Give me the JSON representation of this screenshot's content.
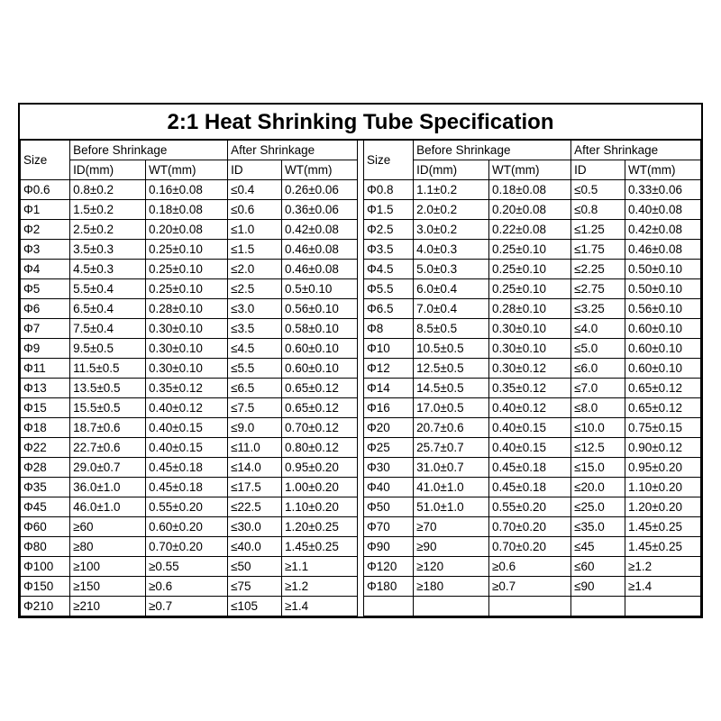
{
  "title": "2:1 Heat Shrinking Tube Specification",
  "headers": {
    "size": "Size",
    "before": "Before Shrinkage",
    "after": "After Shrinkage",
    "id_mm": "ID(mm)",
    "wt_mm": "WT(mm)",
    "id": "ID"
  },
  "left": [
    [
      "Φ0.6",
      "0.8±0.2",
      "0.16±0.08",
      "≤0.4",
      "0.26±0.06"
    ],
    [
      "Φ1",
      "1.5±0.2",
      "0.18±0.08",
      "≤0.6",
      "0.36±0.06"
    ],
    [
      "Φ2",
      "2.5±0.2",
      "0.20±0.08",
      "≤1.0",
      "0.42±0.08"
    ],
    [
      "Φ3",
      "3.5±0.3",
      "0.25±0.10",
      "≤1.5",
      "0.46±0.08"
    ],
    [
      "Φ4",
      "4.5±0.3",
      "0.25±0.10",
      "≤2.0",
      "0.46±0.08"
    ],
    [
      "Φ5",
      "5.5±0.4",
      "0.25±0.10",
      "≤2.5",
      "0.5±0.10"
    ],
    [
      "Φ6",
      "6.5±0.4",
      "0.28±0.10",
      "≤3.0",
      "0.56±0.10"
    ],
    [
      "Φ7",
      "7.5±0.4",
      "0.30±0.10",
      "≤3.5",
      "0.58±0.10"
    ],
    [
      "Φ9",
      "9.5±0.5",
      "0.30±0.10",
      "≤4.5",
      "0.60±0.10"
    ],
    [
      "Φ11",
      "11.5±0.5",
      "0.30±0.10",
      "≤5.5",
      "0.60±0.10"
    ],
    [
      "Φ13",
      "13.5±0.5",
      "0.35±0.12",
      "≤6.5",
      "0.65±0.12"
    ],
    [
      "Φ15",
      "15.5±0.5",
      "0.40±0.12",
      "≤7.5",
      "0.65±0.12"
    ],
    [
      "Φ18",
      "18.7±0.6",
      "0.40±0.15",
      "≤9.0",
      "0.70±0.12"
    ],
    [
      "Φ22",
      "22.7±0.6",
      "0.40±0.15",
      "≤11.0",
      "0.80±0.12"
    ],
    [
      "Φ28",
      "29.0±0.7",
      "0.45±0.18",
      "≤14.0",
      "0.95±0.20"
    ],
    [
      "Φ35",
      "36.0±1.0",
      "0.45±0.18",
      "≤17.5",
      "1.00±0.20"
    ],
    [
      "Φ45",
      "46.0±1.0",
      "0.55±0.20",
      "≤22.5",
      "1.10±0.20"
    ],
    [
      "Φ60",
      "≥60",
      "0.60±0.20",
      "≤30.0",
      "1.20±0.25"
    ],
    [
      "Φ80",
      "≥80",
      "0.70±0.20",
      "≤40.0",
      "1.45±0.25"
    ],
    [
      "Φ100",
      "≥100",
      "≥0.55",
      "≤50",
      "≥1.1"
    ],
    [
      "Φ150",
      "≥150",
      "≥0.6",
      "≤75",
      "≥1.2"
    ],
    [
      "Φ210",
      "≥210",
      "≥0.7",
      "≤105",
      "≥1.4"
    ]
  ],
  "right": [
    [
      "Φ0.8",
      "1.1±0.2",
      "0.18±0.08",
      "≤0.5",
      "0.33±0.06"
    ],
    [
      "Φ1.5",
      "2.0±0.2",
      "0.20±0.08",
      "≤0.8",
      "0.40±0.08"
    ],
    [
      "Φ2.5",
      "3.0±0.2",
      "0.22±0.08",
      "≤1.25",
      "0.42±0.08"
    ],
    [
      "Φ3.5",
      "4.0±0.3",
      "0.25±0.10",
      "≤1.75",
      "0.46±0.08"
    ],
    [
      "Φ4.5",
      "5.0±0.3",
      "0.25±0.10",
      "≤2.25",
      "0.50±0.10"
    ],
    [
      "Φ5.5",
      "6.0±0.4",
      "0.25±0.10",
      "≤2.75",
      "0.50±0.10"
    ],
    [
      "Φ6.5",
      "7.0±0.4",
      "0.28±0.10",
      "≤3.25",
      "0.56±0.10"
    ],
    [
      "Φ8",
      "8.5±0.5",
      "0.30±0.10",
      "≤4.0",
      "0.60±0.10"
    ],
    [
      "Φ10",
      "10.5±0.5",
      "0.30±0.10",
      "≤5.0",
      "0.60±0.10"
    ],
    [
      "Φ12",
      "12.5±0.5",
      "0.30±0.12",
      "≤6.0",
      "0.60±0.10"
    ],
    [
      "Φ14",
      "14.5±0.5",
      "0.35±0.12",
      "≤7.0",
      "0.65±0.12"
    ],
    [
      "Φ16",
      "17.0±0.5",
      "0.40±0.12",
      "≤8.0",
      "0.65±0.12"
    ],
    [
      "Φ20",
      "20.7±0.6",
      "0.40±0.15",
      "≤10.0",
      "0.75±0.15"
    ],
    [
      "Φ25",
      "25.7±0.7",
      "0.40±0.15",
      "≤12.5",
      "0.90±0.12"
    ],
    [
      "Φ30",
      "31.0±0.7",
      "0.45±0.18",
      "≤15.0",
      "0.95±0.20"
    ],
    [
      "Φ40",
      "41.0±1.0",
      "0.45±0.18",
      "≤20.0",
      "1.10±0.20"
    ],
    [
      "Φ50",
      "51.0±1.0",
      "0.55±0.20",
      "≤25.0",
      "1.20±0.20"
    ],
    [
      "Φ70",
      "≥70",
      "0.70±0.20",
      "≤35.0",
      "1.45±0.25"
    ],
    [
      "Φ90",
      "≥90",
      "0.70±0.20",
      "≤45",
      "1.45±0.25"
    ],
    [
      "Φ120",
      "≥120",
      "≥0.6",
      "≤60",
      "≥1.2"
    ],
    [
      "Φ180",
      "≥180",
      "≥0.7",
      "≤90",
      "≥1.4"
    ]
  ],
  "style": {
    "border_color": "#000000",
    "background_color": "#ffffff",
    "title_fontsize": 24,
    "cell_fontsize": 13.5,
    "font_family": "Arial"
  }
}
